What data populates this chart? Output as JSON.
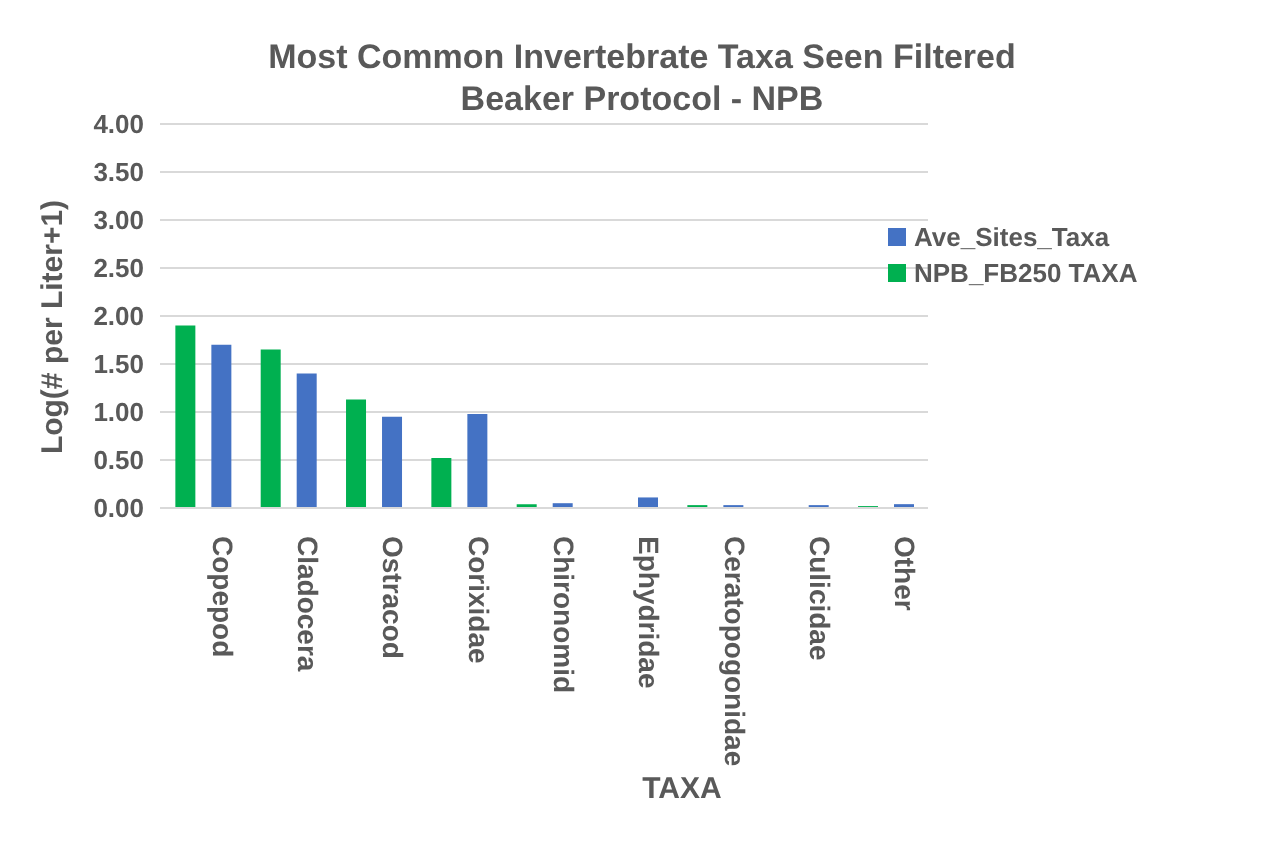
{
  "chart_data": {
    "type": "bar",
    "title": "Most Common Invertebrate Taxa Seen Filtered Beaker Protocol - NPB",
    "xlabel": "TAXA",
    "ylabel": "Log(# per Liter+1)",
    "categories": [
      "Copepod",
      "Cladocera",
      "Ostracod",
      "Corixidae",
      "Chironomid",
      "Ephydridae",
      "Ceratopogonidae",
      "Culicidae",
      "Other"
    ],
    "series": [
      {
        "name": "NPB_FB250 TAXA",
        "color": "#00b050",
        "values": [
          1.9,
          1.65,
          1.13,
          0.52,
          0.04,
          0,
          0.03,
          0,
          0.02
        ]
      },
      {
        "name": "Ave_Sites_Taxa",
        "color": "#4472c4",
        "values": [
          1.7,
          1.4,
          0.95,
          0.98,
          0.05,
          0.11,
          0.03,
          0.03,
          0.04
        ]
      }
    ],
    "ylim": [
      0,
      4
    ],
    "yticks": [
      {
        "value": 0,
        "label": "0.00"
      },
      {
        "value": 0.5,
        "label": "0.50"
      },
      {
        "value": 1,
        "label": "1.00"
      },
      {
        "value": 1.5,
        "label": "1.50"
      },
      {
        "value": 2,
        "label": "2.00"
      },
      {
        "value": 2.5,
        "label": "2.50"
      },
      {
        "value": 3,
        "label": "3.00"
      },
      {
        "value": 3.5,
        "label": "3.50"
      },
      {
        "value": 4,
        "label": "4.00"
      }
    ],
    "grid": "y",
    "legend": "top right"
  }
}
